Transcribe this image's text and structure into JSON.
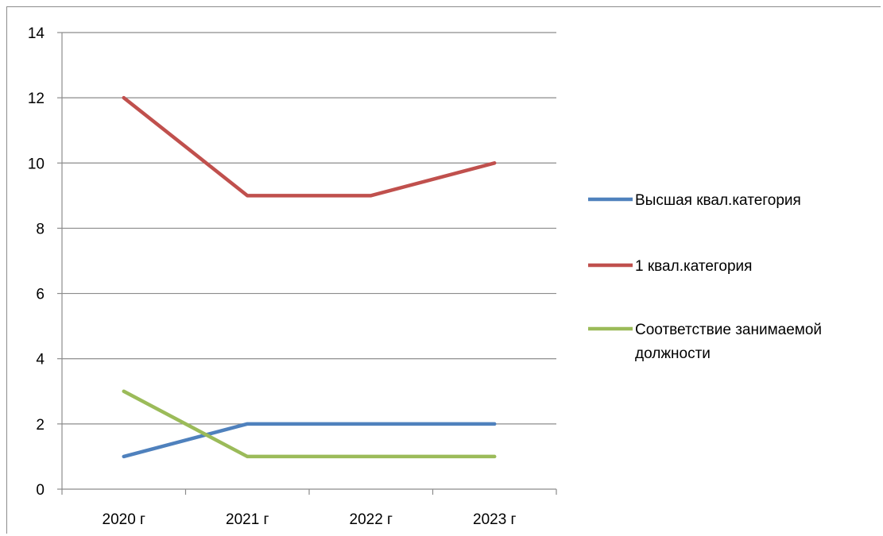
{
  "chart_data": {
    "type": "line",
    "categories": [
      "2020 г",
      "2021 г",
      "2022 г",
      "2023 г"
    ],
    "series": [
      {
        "name": "Высшая квал.категория",
        "values": [
          1,
          2,
          2,
          2
        ],
        "color": "#4f81bd"
      },
      {
        "name": "1 квал.категория",
        "values": [
          12,
          9,
          9,
          10
        ],
        "color": "#c0504d"
      },
      {
        "name": "Соответствие занимаемой должности",
        "values": [
          3,
          1,
          1,
          1
        ],
        "color": "#9bbb59"
      }
    ],
    "yticks": [
      "0",
      "2",
      "4",
      "6",
      "8",
      "10",
      "12",
      "14"
    ],
    "ylim": [
      0,
      14
    ],
    "grid": true,
    "legend": "right"
  }
}
